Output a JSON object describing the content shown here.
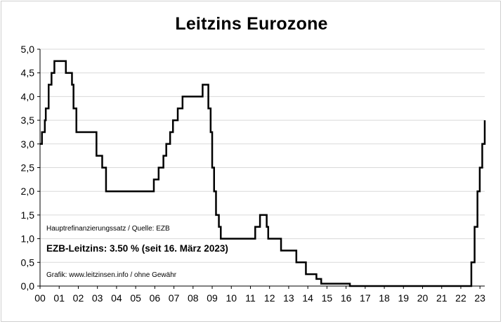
{
  "chart_data": {
    "type": "line",
    "title": "Leitzins Eurozone",
    "xlabel": "",
    "ylabel": "",
    "ylim": [
      0,
      5
    ],
    "xlim": [
      0,
      23.25
    ],
    "grid": true,
    "y_ticks": [
      "0,0",
      "0,5",
      "1,0",
      "1,5",
      "2,0",
      "2,5",
      "3,0",
      "3,5",
      "4,0",
      "4,5",
      "5,0"
    ],
    "x_ticks": [
      "00",
      "01",
      "02",
      "03",
      "04",
      "05",
      "06",
      "07",
      "08",
      "09",
      "10",
      "11",
      "12",
      "13",
      "14",
      "15",
      "16",
      "17",
      "18",
      "19",
      "20",
      "21",
      "22",
      "23"
    ],
    "annotations": {
      "source": "Hauptrefinanzierungssatz / Quelle: EZB",
      "current_rate": "EZB-Leitzins: 3.50 % (seit 16. März 2023)",
      "credit": "Grafik: www.leitzinsen.info / ohne Gewähr"
    },
    "series": [
      {
        "style": "step",
        "color": "#000000",
        "points": [
          [
            0.0,
            3.0
          ],
          [
            0.1,
            3.25
          ],
          [
            0.25,
            3.5
          ],
          [
            0.3,
            3.75
          ],
          [
            0.45,
            4.25
          ],
          [
            0.6,
            4.5
          ],
          [
            0.75,
            4.75
          ],
          [
            1.35,
            4.5
          ],
          [
            1.67,
            4.25
          ],
          [
            1.75,
            3.75
          ],
          [
            1.9,
            3.25
          ],
          [
            2.95,
            2.75
          ],
          [
            3.25,
            2.5
          ],
          [
            3.45,
            2.0
          ],
          [
            5.95,
            2.25
          ],
          [
            6.2,
            2.5
          ],
          [
            6.45,
            2.75
          ],
          [
            6.6,
            3.0
          ],
          [
            6.8,
            3.25
          ],
          [
            6.95,
            3.5
          ],
          [
            7.2,
            3.75
          ],
          [
            7.45,
            4.0
          ],
          [
            8.5,
            4.25
          ],
          [
            8.8,
            3.75
          ],
          [
            8.92,
            3.25
          ],
          [
            9.0,
            2.5
          ],
          [
            9.1,
            2.0
          ],
          [
            9.2,
            1.5
          ],
          [
            9.35,
            1.25
          ],
          [
            9.45,
            1.0
          ],
          [
            11.25,
            1.25
          ],
          [
            11.5,
            1.5
          ],
          [
            11.85,
            1.25
          ],
          [
            11.93,
            1.0
          ],
          [
            12.6,
            0.75
          ],
          [
            13.4,
            0.5
          ],
          [
            13.9,
            0.25
          ],
          [
            14.45,
            0.15
          ],
          [
            14.7,
            0.05
          ],
          [
            16.2,
            0.0
          ],
          [
            22.55,
            0.5
          ],
          [
            22.72,
            1.25
          ],
          [
            22.87,
            2.0
          ],
          [
            22.99,
            2.5
          ],
          [
            23.12,
            3.0
          ],
          [
            23.25,
            3.5
          ]
        ]
      }
    ]
  }
}
